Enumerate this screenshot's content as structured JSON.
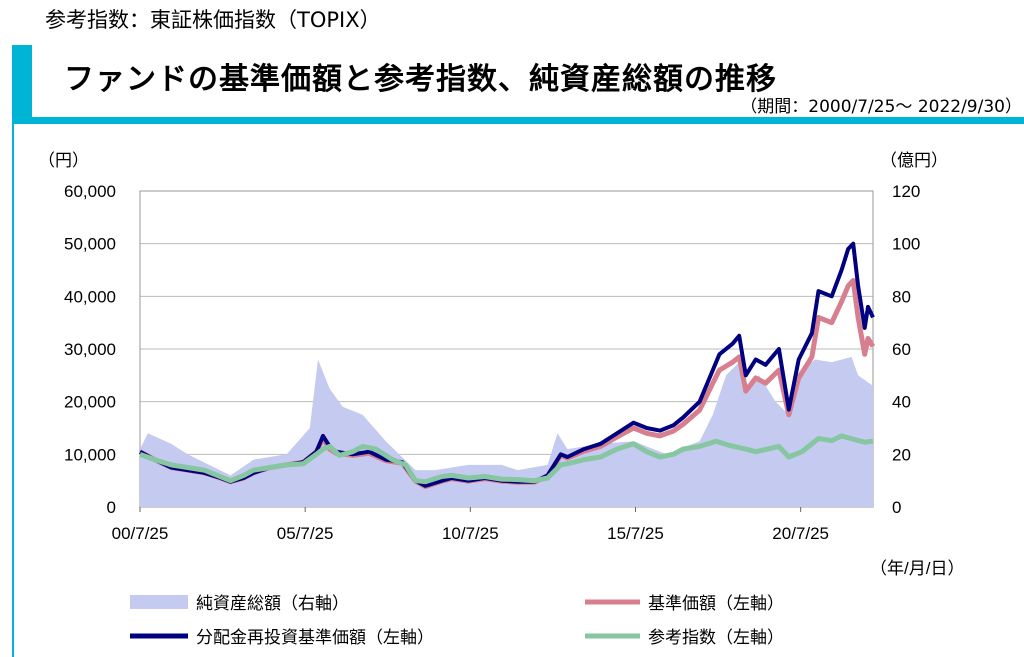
{
  "header": {
    "subtitle": "参考指数：東証株価指数（TOPIX）",
    "title": "ファンドの基準価額と参考指数、純資産総額の推移",
    "period": "（期間：2000/7/25～ 2022/9/30）"
  },
  "colors": {
    "accent": "#00b4d6",
    "nav_reinvested": "#000080",
    "nav": "#d77f8e",
    "benchmark": "#86c6a1",
    "net_assets": "#c5cbf0"
  },
  "chart_data": {
    "type": "line",
    "left_unit": "（円）",
    "right_unit": "（億円）",
    "x_unit": "（年/月/日）",
    "ylim": [
      0,
      60000
    ],
    "y2lim": [
      0,
      120
    ],
    "xlim": [
      2000.56,
      2022.75
    ],
    "yticks": [
      "0",
      "10,000",
      "20,000",
      "30,000",
      "40,000",
      "50,000",
      "60,000"
    ],
    "y2ticks": [
      "0",
      "20",
      "40",
      "60",
      "80",
      "100",
      "120"
    ],
    "xticks": [
      {
        "label": "00/7/25",
        "x": 2000.56
      },
      {
        "label": "05/7/25",
        "x": 2005.56
      },
      {
        "label": "10/7/25",
        "x": 2010.56
      },
      {
        "label": "15/7/25",
        "x": 2015.56
      },
      {
        "label": "20/7/25",
        "x": 2020.56
      }
    ],
    "legend": [
      "純資産総額（右軸）",
      "基準価額（左軸）",
      "分配金再投資基準価額（左軸）",
      "参考指数（左軸）"
    ],
    "series": {
      "net_assets": [
        [
          2000.56,
          22
        ],
        [
          2000.8,
          28
        ],
        [
          2001.5,
          24
        ],
        [
          2002,
          20
        ],
        [
          2003.3,
          12
        ],
        [
          2004,
          18
        ],
        [
          2005,
          20
        ],
        [
          2005.7,
          30
        ],
        [
          2005.95,
          56
        ],
        [
          2006.3,
          45
        ],
        [
          2006.7,
          38
        ],
        [
          2007.3,
          35
        ],
        [
          2008,
          25
        ],
        [
          2008.9,
          14
        ],
        [
          2009.5,
          14
        ],
        [
          2010.5,
          16
        ],
        [
          2011.5,
          16
        ],
        [
          2012,
          14
        ],
        [
          2012.9,
          16
        ],
        [
          2013.2,
          28
        ],
        [
          2013.5,
          22
        ],
        [
          2014.5,
          24
        ],
        [
          2015.5,
          25
        ],
        [
          2016.5,
          20
        ],
        [
          2017.5,
          25
        ],
        [
          2017.9,
          35
        ],
        [
          2018.3,
          50
        ],
        [
          2018.7,
          55
        ],
        [
          2019,
          45
        ],
        [
          2019.3,
          50
        ],
        [
          2019.8,
          40
        ],
        [
          2020.2,
          35
        ],
        [
          2020.4,
          50
        ],
        [
          2021,
          56
        ],
        [
          2021.5,
          55
        ],
        [
          2022.1,
          57
        ],
        [
          2022.3,
          50
        ],
        [
          2022.75,
          46
        ]
      ],
      "nav_reinvested": [
        [
          2000.56,
          10500
        ],
        [
          2001,
          9000
        ],
        [
          2001.5,
          7500
        ],
        [
          2002,
          7000
        ],
        [
          2002.5,
          6500
        ],
        [
          2003,
          5500
        ],
        [
          2003.3,
          4800
        ],
        [
          2003.7,
          5500
        ],
        [
          2004,
          6500
        ],
        [
          2004.5,
          7500
        ],
        [
          2005,
          8000
        ],
        [
          2005.5,
          8500
        ],
        [
          2005.9,
          10500
        ],
        [
          2006.1,
          13500
        ],
        [
          2006.3,
          11500
        ],
        [
          2006.5,
          10500
        ],
        [
          2007,
          10000
        ],
        [
          2007.5,
          10500
        ],
        [
          2008,
          9000
        ],
        [
          2008.5,
          8500
        ],
        [
          2008.9,
          5000
        ],
        [
          2009.2,
          4000
        ],
        [
          2009.7,
          5000
        ],
        [
          2010,
          5500
        ],
        [
          2010.5,
          5000
        ],
        [
          2011,
          5500
        ],
        [
          2011.5,
          5000
        ],
        [
          2012,
          4800
        ],
        [
          2012.5,
          4800
        ],
        [
          2012.9,
          6000
        ],
        [
          2013.3,
          10000
        ],
        [
          2013.5,
          9500
        ],
        [
          2014,
          11000
        ],
        [
          2014.5,
          12000
        ],
        [
          2015,
          14000
        ],
        [
          2015.5,
          16000
        ],
        [
          2015.9,
          15000
        ],
        [
          2016.3,
          14500
        ],
        [
          2016.7,
          15500
        ],
        [
          2017,
          17000
        ],
        [
          2017.5,
          20000
        ],
        [
          2017.9,
          26000
        ],
        [
          2018.1,
          29000
        ],
        [
          2018.5,
          31000
        ],
        [
          2018.7,
          32500
        ],
        [
          2018.9,
          25000
        ],
        [
          2019.2,
          28000
        ],
        [
          2019.5,
          27000
        ],
        [
          2019.9,
          30000
        ],
        [
          2020.2,
          18500
        ],
        [
          2020.5,
          28000
        ],
        [
          2020.9,
          33000
        ],
        [
          2021.1,
          41000
        ],
        [
          2021.5,
          40000
        ],
        [
          2021.8,
          45000
        ],
        [
          2022,
          49000
        ],
        [
          2022.15,
          50000
        ],
        [
          2022.3,
          42000
        ],
        [
          2022.5,
          34000
        ],
        [
          2022.6,
          38000
        ],
        [
          2022.75,
          36000
        ]
      ],
      "nav": [
        [
          2000.56,
          10500
        ],
        [
          2001,
          9000
        ],
        [
          2001.5,
          7500
        ],
        [
          2002,
          7000
        ],
        [
          2002.5,
          6500
        ],
        [
          2003,
          5500
        ],
        [
          2003.3,
          4800
        ],
        [
          2003.7,
          5500
        ],
        [
          2004,
          6500
        ],
        [
          2004.5,
          7500
        ],
        [
          2005,
          8000
        ],
        [
          2005.5,
          8500
        ],
        [
          2005.9,
          10500
        ],
        [
          2006.1,
          13000
        ],
        [
          2006.3,
          11000
        ],
        [
          2006.5,
          10200
        ],
        [
          2007,
          9800
        ],
        [
          2007.5,
          10200
        ],
        [
          2008,
          8800
        ],
        [
          2008.5,
          8300
        ],
        [
          2008.9,
          4900
        ],
        [
          2009.2,
          3900
        ],
        [
          2009.7,
          4900
        ],
        [
          2010,
          5400
        ],
        [
          2010.5,
          4900
        ],
        [
          2011,
          5400
        ],
        [
          2011.5,
          4900
        ],
        [
          2012,
          4700
        ],
        [
          2012.5,
          4700
        ],
        [
          2012.9,
          5900
        ],
        [
          2013.3,
          9800
        ],
        [
          2013.5,
          9300
        ],
        [
          2014,
          10600
        ],
        [
          2014.5,
          11500
        ],
        [
          2015,
          13300
        ],
        [
          2015.5,
          15000
        ],
        [
          2015.9,
          14000
        ],
        [
          2016.3,
          13500
        ],
        [
          2016.7,
          14400
        ],
        [
          2017,
          15700
        ],
        [
          2017.5,
          18400
        ],
        [
          2017.9,
          23500
        ],
        [
          2018.1,
          26000
        ],
        [
          2018.5,
          27500
        ],
        [
          2018.7,
          28500
        ],
        [
          2018.9,
          22000
        ],
        [
          2019.2,
          24500
        ],
        [
          2019.5,
          23500
        ],
        [
          2019.9,
          26000
        ],
        [
          2020.2,
          17500
        ],
        [
          2020.5,
          24500
        ],
        [
          2020.9,
          28500
        ],
        [
          2021.1,
          36000
        ],
        [
          2021.5,
          35000
        ],
        [
          2021.8,
          39000
        ],
        [
          2022,
          42000
        ],
        [
          2022.15,
          43000
        ],
        [
          2022.3,
          36000
        ],
        [
          2022.5,
          29000
        ],
        [
          2022.6,
          32000
        ],
        [
          2022.75,
          30500
        ]
      ],
      "benchmark": [
        [
          2000.56,
          10000
        ],
        [
          2001,
          9000
        ],
        [
          2001.5,
          8000
        ],
        [
          2002,
          7500
        ],
        [
          2002.5,
          7000
        ],
        [
          2003.3,
          5000
        ],
        [
          2003.7,
          6000
        ],
        [
          2004,
          7000
        ],
        [
          2004.5,
          7500
        ],
        [
          2005,
          8000
        ],
        [
          2005.5,
          8200
        ],
        [
          2005.9,
          10000
        ],
        [
          2006.1,
          11000
        ],
        [
          2006.3,
          11500
        ],
        [
          2006.6,
          9800
        ],
        [
          2007,
          10500
        ],
        [
          2007.3,
          11500
        ],
        [
          2007.7,
          11000
        ],
        [
          2008.2,
          9000
        ],
        [
          2008.6,
          8000
        ],
        [
          2008.9,
          5000
        ],
        [
          2009.2,
          4800
        ],
        [
          2009.7,
          5800
        ],
        [
          2010,
          6000
        ],
        [
          2010.5,
          5500
        ],
        [
          2011,
          5800
        ],
        [
          2011.5,
          5300
        ],
        [
          2012,
          5200
        ],
        [
          2012.5,
          5000
        ],
        [
          2012.9,
          5500
        ],
        [
          2013.3,
          8000
        ],
        [
          2013.7,
          8500
        ],
        [
          2014,
          9000
        ],
        [
          2014.5,
          9500
        ],
        [
          2015,
          11000
        ],
        [
          2015.5,
          12000
        ],
        [
          2015.9,
          10500
        ],
        [
          2016.3,
          9500
        ],
        [
          2016.7,
          10000
        ],
        [
          2017,
          11000
        ],
        [
          2017.5,
          11500
        ],
        [
          2018,
          12500
        ],
        [
          2018.4,
          11700
        ],
        [
          2018.9,
          11000
        ],
        [
          2019.2,
          10500
        ],
        [
          2019.9,
          11500
        ],
        [
          2020.2,
          9500
        ],
        [
          2020.6,
          10500
        ],
        [
          2021.1,
          13000
        ],
        [
          2021.5,
          12600
        ],
        [
          2021.8,
          13500
        ],
        [
          2022.2,
          12800
        ],
        [
          2022.5,
          12300
        ],
        [
          2022.75,
          12500
        ]
      ]
    }
  }
}
